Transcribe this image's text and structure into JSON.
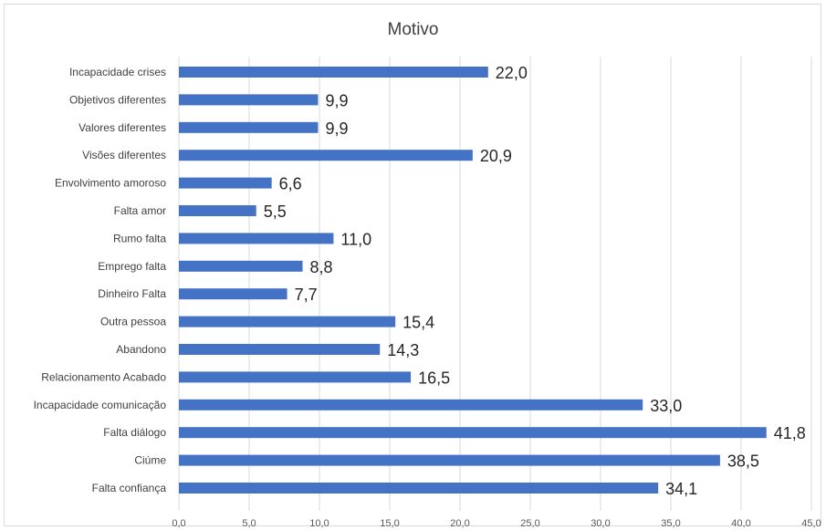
{
  "chart_data": {
    "type": "bar",
    "orientation": "horizontal",
    "title": "Motivo",
    "categories": [
      "Incapacidade crises",
      "Objetivos diferentes",
      "Valores diferentes",
      "Visões diferentes",
      "Envolvimento amoroso",
      "Falta amor",
      "Rumo falta",
      "Emprego falta",
      "Dinheiro Falta",
      "Outra pessoa",
      "Abandono",
      "Relacionamento Acabado",
      "Incapacidade comunicação",
      "Falta diálogo",
      "Ciúme",
      "Falta confiança"
    ],
    "values": [
      22.0,
      9.9,
      9.9,
      20.9,
      6.6,
      5.5,
      11.0,
      8.8,
      7.7,
      15.4,
      14.3,
      16.5,
      33.0,
      41.8,
      38.5,
      34.1
    ],
    "data_labels": [
      "22,0",
      "9,9",
      "9,9",
      "20,9",
      "6,6",
      "5,5",
      "11,0",
      "8,8",
      "7,7",
      "15,4",
      "14,3",
      "16,5",
      "33,0",
      "41,8",
      "38,5",
      "34,1"
    ],
    "xlim": [
      0,
      45
    ],
    "xticks": [
      "0,0",
      "5,0",
      "10,0",
      "15,0",
      "20,0",
      "25,0",
      "30,0",
      "35,0",
      "40,0",
      "45,0"
    ],
    "grid": true,
    "bar_color": "#4472c4",
    "legend": false
  }
}
